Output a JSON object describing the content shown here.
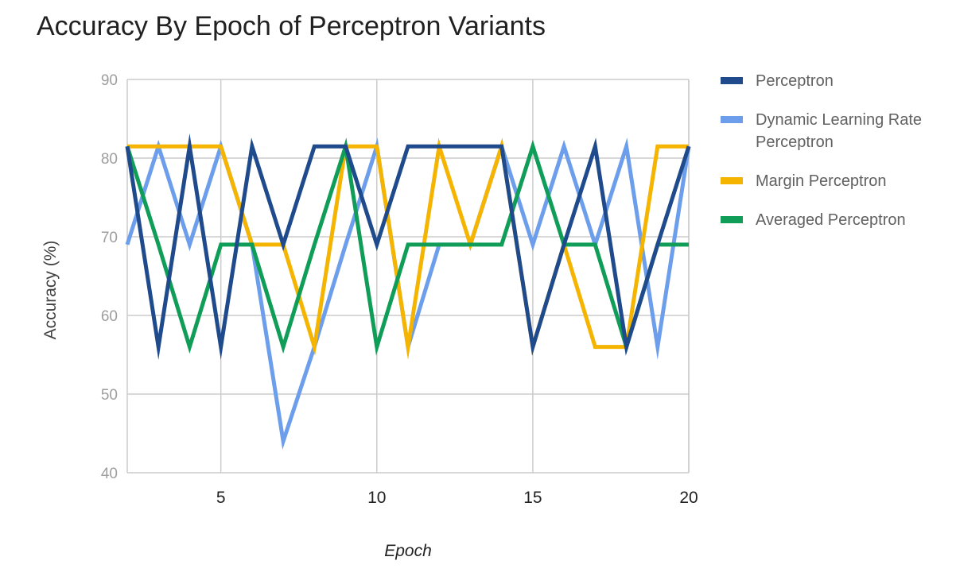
{
  "chart_data": {
    "type": "line",
    "title": "Accuracy By Epoch of Perceptron Variants",
    "xlabel": "Epoch",
    "ylabel": "Accuracy (%)",
    "xlim": [
      2,
      20
    ],
    "ylim": [
      40,
      90
    ],
    "x_ticks": [
      5,
      10,
      15,
      20
    ],
    "y_ticks": [
      40,
      50,
      60,
      70,
      80,
      90
    ],
    "grid": true,
    "legend_position": "right",
    "x": [
      2,
      3,
      4,
      5,
      6,
      7,
      8,
      9,
      10,
      11,
      12,
      13,
      14,
      15,
      16,
      17,
      18,
      19,
      20
    ],
    "series": [
      {
        "name": "Perceptron",
        "color": "#1f4a8b",
        "values": [
          81.5,
          56,
          81.5,
          56,
          81.5,
          69,
          81.5,
          81.5,
          69,
          81.5,
          81.5,
          81.5,
          81.5,
          56,
          69,
          81.5,
          56,
          69,
          81.5
        ]
      },
      {
        "name": "Dynamic Learning Rate Perceptron",
        "color": "#6d9eeb",
        "values": [
          69,
          81.5,
          69,
          81.5,
          69,
          44,
          56,
          69,
          81.5,
          56,
          69,
          69,
          81.5,
          69,
          81.5,
          69,
          81.5,
          56,
          81.5
        ]
      },
      {
        "name": "Margin Perceptron",
        "color": "#f4b400",
        "values": [
          81.5,
          81.5,
          81.5,
          81.5,
          69,
          69,
          56,
          81.5,
          81.5,
          56,
          81.5,
          69,
          81.5,
          56,
          69,
          56,
          56,
          81.5,
          81.5
        ]
      },
      {
        "name": "Averaged Perceptron",
        "color": "#0f9d58",
        "values": [
          81.5,
          69,
          56,
          69,
          69,
          56,
          69,
          81.5,
          56,
          69,
          69,
          69,
          69,
          81.5,
          69,
          69,
          56,
          69,
          69
        ]
      }
    ]
  }
}
